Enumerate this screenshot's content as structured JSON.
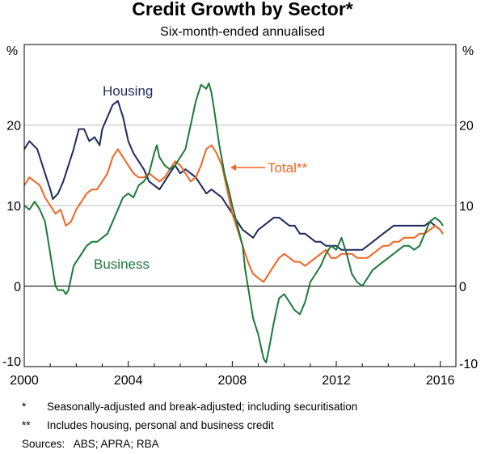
{
  "chart_data": {
    "type": "line",
    "title": "Credit Growth by Sector*",
    "subtitle": "Six-month-ended annualised",
    "y_unit_left": "%",
    "y_unit_right": "%",
    "ylim": [
      -10,
      30
    ],
    "yticks": [
      -10,
      0,
      10,
      20
    ],
    "xlim": [
      2000,
      2016.6
    ],
    "xticks": [
      2000,
      2004,
      2008,
      2012,
      2016
    ],
    "grid": true,
    "series": [
      {
        "name": "Housing",
        "color": "#1f2a5c",
        "points": [
          [
            2000.0,
            17.0
          ],
          [
            2000.2,
            18.0
          ],
          [
            2000.5,
            17.0
          ],
          [
            2000.8,
            14.0
          ],
          [
            2001.0,
            12.0
          ],
          [
            2001.1,
            10.8
          ],
          [
            2001.3,
            11.5
          ],
          [
            2001.5,
            13.0
          ],
          [
            2001.7,
            15.0
          ],
          [
            2001.9,
            17.0
          ],
          [
            2002.1,
            19.5
          ],
          [
            2002.3,
            19.5
          ],
          [
            2002.5,
            18.0
          ],
          [
            2002.7,
            18.5
          ],
          [
            2002.9,
            17.5
          ],
          [
            2003.0,
            19.5
          ],
          [
            2003.2,
            21.0
          ],
          [
            2003.4,
            22.5
          ],
          [
            2003.6,
            23.0
          ],
          [
            2003.8,
            21.0
          ],
          [
            2004.0,
            18.0
          ],
          [
            2004.2,
            16.5
          ],
          [
            2004.4,
            15.5
          ],
          [
            2004.6,
            14.5
          ],
          [
            2004.8,
            13.0
          ],
          [
            2005.0,
            12.5
          ],
          [
            2005.2,
            12.0
          ],
          [
            2005.4,
            13.0
          ],
          [
            2005.6,
            14.0
          ],
          [
            2005.8,
            15.0
          ],
          [
            2006.0,
            14.0
          ],
          [
            2006.2,
            14.5
          ],
          [
            2006.4,
            14.0
          ],
          [
            2006.6,
            13.5
          ],
          [
            2006.8,
            12.5
          ],
          [
            2007.0,
            11.5
          ],
          [
            2007.2,
            12.0
          ],
          [
            2007.4,
            11.5
          ],
          [
            2007.6,
            11.0
          ],
          [
            2007.8,
            10.0
          ],
          [
            2008.0,
            9.0
          ],
          [
            2008.2,
            8.0
          ],
          [
            2008.4,
            7.0
          ],
          [
            2008.6,
            6.5
          ],
          [
            2008.8,
            6.0
          ],
          [
            2009.0,
            7.0
          ],
          [
            2009.2,
            7.5
          ],
          [
            2009.4,
            8.0
          ],
          [
            2009.6,
            8.5
          ],
          [
            2009.8,
            8.5
          ],
          [
            2010.0,
            8.0
          ],
          [
            2010.2,
            7.5
          ],
          [
            2010.4,
            7.5
          ],
          [
            2010.6,
            6.5
          ],
          [
            2010.8,
            6.5
          ],
          [
            2011.0,
            6.0
          ],
          [
            2011.2,
            5.5
          ],
          [
            2011.4,
            5.5
          ],
          [
            2011.6,
            5.0
          ],
          [
            2011.8,
            5.0
          ],
          [
            2012.0,
            5.0
          ],
          [
            2012.2,
            4.5
          ],
          [
            2012.4,
            4.5
          ],
          [
            2012.6,
            4.5
          ],
          [
            2012.8,
            4.5
          ],
          [
            2013.0,
            4.5
          ],
          [
            2013.2,
            5.0
          ],
          [
            2013.4,
            5.5
          ],
          [
            2013.6,
            6.0
          ],
          [
            2013.8,
            6.5
          ],
          [
            2014.0,
            7.0
          ],
          [
            2014.2,
            7.5
          ],
          [
            2014.4,
            7.5
          ],
          [
            2014.6,
            7.5
          ],
          [
            2014.8,
            7.5
          ],
          [
            2015.0,
            7.5
          ],
          [
            2015.2,
            7.5
          ],
          [
            2015.4,
            7.5
          ],
          [
            2015.6,
            8.0
          ],
          [
            2015.8,
            7.5
          ],
          [
            2016.0,
            7.0
          ],
          [
            2016.1,
            6.5
          ]
        ]
      },
      {
        "name": "Total**",
        "color": "#f26522",
        "points": [
          [
            2000.0,
            12.5
          ],
          [
            2000.2,
            13.5
          ],
          [
            2000.4,
            13.0
          ],
          [
            2000.6,
            12.5
          ],
          [
            2000.8,
            11.0
          ],
          [
            2001.0,
            10.0
          ],
          [
            2001.2,
            9.0
          ],
          [
            2001.4,
            9.5
          ],
          [
            2001.6,
            7.5
          ],
          [
            2001.8,
            8.0
          ],
          [
            2002.0,
            9.5
          ],
          [
            2002.2,
            10.5
          ],
          [
            2002.4,
            11.5
          ],
          [
            2002.6,
            12.0
          ],
          [
            2002.8,
            12.0
          ],
          [
            2003.0,
            13.0
          ],
          [
            2003.2,
            14.0
          ],
          [
            2003.4,
            16.0
          ],
          [
            2003.6,
            17.0
          ],
          [
            2003.8,
            16.0
          ],
          [
            2004.0,
            15.0
          ],
          [
            2004.2,
            14.0
          ],
          [
            2004.4,
            13.5
          ],
          [
            2004.6,
            13.5
          ],
          [
            2004.8,
            14.0
          ],
          [
            2005.0,
            13.5
          ],
          [
            2005.2,
            13.0
          ],
          [
            2005.4,
            13.5
          ],
          [
            2005.6,
            14.5
          ],
          [
            2005.8,
            15.5
          ],
          [
            2006.0,
            15.0
          ],
          [
            2006.2,
            14.0
          ],
          [
            2006.4,
            13.0
          ],
          [
            2006.6,
            13.5
          ],
          [
            2006.8,
            15.0
          ],
          [
            2007.0,
            17.0
          ],
          [
            2007.2,
            17.5
          ],
          [
            2007.4,
            16.5
          ],
          [
            2007.6,
            15.0
          ],
          [
            2007.8,
            12.0
          ],
          [
            2008.0,
            9.0
          ],
          [
            2008.2,
            7.0
          ],
          [
            2008.4,
            5.0
          ],
          [
            2008.6,
            3.0
          ],
          [
            2008.8,
            1.5
          ],
          [
            2009.0,
            1.0
          ],
          [
            2009.2,
            0.5
          ],
          [
            2009.4,
            1.5
          ],
          [
            2009.6,
            2.5
          ],
          [
            2009.8,
            3.5
          ],
          [
            2010.0,
            4.0
          ],
          [
            2010.2,
            3.5
          ],
          [
            2010.4,
            3.0
          ],
          [
            2010.6,
            3.0
          ],
          [
            2010.8,
            2.5
          ],
          [
            2011.0,
            3.0
          ],
          [
            2011.2,
            3.5
          ],
          [
            2011.4,
            4.0
          ],
          [
            2011.6,
            4.5
          ],
          [
            2011.8,
            3.5
          ],
          [
            2012.0,
            3.5
          ],
          [
            2012.2,
            4.0
          ],
          [
            2012.4,
            4.0
          ],
          [
            2012.6,
            4.0
          ],
          [
            2012.8,
            3.5
          ],
          [
            2013.0,
            3.5
          ],
          [
            2013.2,
            3.5
          ],
          [
            2013.4,
            4.0
          ],
          [
            2013.6,
            4.5
          ],
          [
            2013.8,
            5.0
          ],
          [
            2014.0,
            5.0
          ],
          [
            2014.2,
            5.5
          ],
          [
            2014.4,
            5.5
          ],
          [
            2014.6,
            6.0
          ],
          [
            2014.8,
            6.0
          ],
          [
            2015.0,
            6.0
          ],
          [
            2015.2,
            6.5
          ],
          [
            2015.4,
            6.5
          ],
          [
            2015.6,
            7.0
          ],
          [
            2015.8,
            7.5
          ],
          [
            2016.0,
            7.0
          ],
          [
            2016.1,
            6.5
          ]
        ]
      },
      {
        "name": "Business",
        "color": "#1b7a3a",
        "points": [
          [
            2000.0,
            10.0
          ],
          [
            2000.2,
            9.5
          ],
          [
            2000.4,
            10.5
          ],
          [
            2000.6,
            9.5
          ],
          [
            2000.8,
            8.0
          ],
          [
            2000.9,
            6.0
          ],
          [
            2001.0,
            4.0
          ],
          [
            2001.1,
            2.0
          ],
          [
            2001.2,
            0.0
          ],
          [
            2001.3,
            -0.5
          ],
          [
            2001.5,
            -0.5
          ],
          [
            2001.6,
            -1.0
          ],
          [
            2001.7,
            -0.5
          ],
          [
            2001.8,
            1.0
          ],
          [
            2001.9,
            2.5
          ],
          [
            2002.0,
            3.0
          ],
          [
            2002.2,
            4.0
          ],
          [
            2002.4,
            5.0
          ],
          [
            2002.6,
            5.5
          ],
          [
            2002.8,
            5.5
          ],
          [
            2003.0,
            6.0
          ],
          [
            2003.2,
            6.5
          ],
          [
            2003.4,
            8.0
          ],
          [
            2003.6,
            9.5
          ],
          [
            2003.8,
            11.0
          ],
          [
            2004.0,
            11.5
          ],
          [
            2004.2,
            11.0
          ],
          [
            2004.4,
            12.5
          ],
          [
            2004.6,
            13.0
          ],
          [
            2004.8,
            14.0
          ],
          [
            2005.0,
            16.5
          ],
          [
            2005.1,
            17.5
          ],
          [
            2005.2,
            16.0
          ],
          [
            2005.4,
            15.0
          ],
          [
            2005.6,
            14.5
          ],
          [
            2005.8,
            15.0
          ],
          [
            2006.0,
            16.0
          ],
          [
            2006.2,
            17.0
          ],
          [
            2006.4,
            20.0
          ],
          [
            2006.6,
            23.0
          ],
          [
            2006.8,
            25.0
          ],
          [
            2007.0,
            24.5
          ],
          [
            2007.1,
            25.2
          ],
          [
            2007.2,
            24.0
          ],
          [
            2007.3,
            22.0
          ],
          [
            2007.5,
            17.5
          ],
          [
            2007.7,
            14.0
          ],
          [
            2007.9,
            11.5
          ],
          [
            2008.0,
            10.0
          ],
          [
            2008.2,
            7.5
          ],
          [
            2008.4,
            5.0
          ],
          [
            2008.5,
            2.0
          ],
          [
            2008.6,
            0.0
          ],
          [
            2008.8,
            -4.0
          ],
          [
            2009.0,
            -6.0
          ],
          [
            2009.2,
            -9.0
          ],
          [
            2009.3,
            -9.5
          ],
          [
            2009.4,
            -8.0
          ],
          [
            2009.6,
            -4.5
          ],
          [
            2009.8,
            -1.5
          ],
          [
            2010.0,
            -1.0
          ],
          [
            2010.2,
            -2.0
          ],
          [
            2010.4,
            -3.0
          ],
          [
            2010.6,
            -3.5
          ],
          [
            2010.8,
            -2.0
          ],
          [
            2011.0,
            0.5
          ],
          [
            2011.2,
            1.5
          ],
          [
            2011.4,
            2.5
          ],
          [
            2011.6,
            4.0
          ],
          [
            2011.8,
            5.0
          ],
          [
            2012.0,
            4.5
          ],
          [
            2012.2,
            6.0
          ],
          [
            2012.4,
            4.0
          ],
          [
            2012.6,
            1.5
          ],
          [
            2012.8,
            0.5
          ],
          [
            2013.0,
            0.0
          ],
          [
            2013.2,
            1.0
          ],
          [
            2013.4,
            2.0
          ],
          [
            2013.6,
            2.5
          ],
          [
            2013.8,
            3.0
          ],
          [
            2014.0,
            3.5
          ],
          [
            2014.2,
            4.0
          ],
          [
            2014.4,
            4.5
          ],
          [
            2014.6,
            5.0
          ],
          [
            2014.8,
            5.0
          ],
          [
            2015.0,
            4.5
          ],
          [
            2015.2,
            5.0
          ],
          [
            2015.4,
            6.5
          ],
          [
            2015.6,
            8.0
          ],
          [
            2015.8,
            8.5
          ],
          [
            2016.0,
            8.0
          ],
          [
            2016.1,
            7.5
          ]
        ]
      }
    ],
    "labels": {
      "housing": "Housing",
      "total": "Total**",
      "business": "Business"
    },
    "notes": [
      {
        "marker": "*",
        "text": "Seasonally-adjusted and break-adjusted; including securitisation"
      },
      {
        "marker": "**",
        "text": "Includes housing, personal and business credit"
      }
    ],
    "sources": "Sources:   ABS; APRA; RBA"
  }
}
